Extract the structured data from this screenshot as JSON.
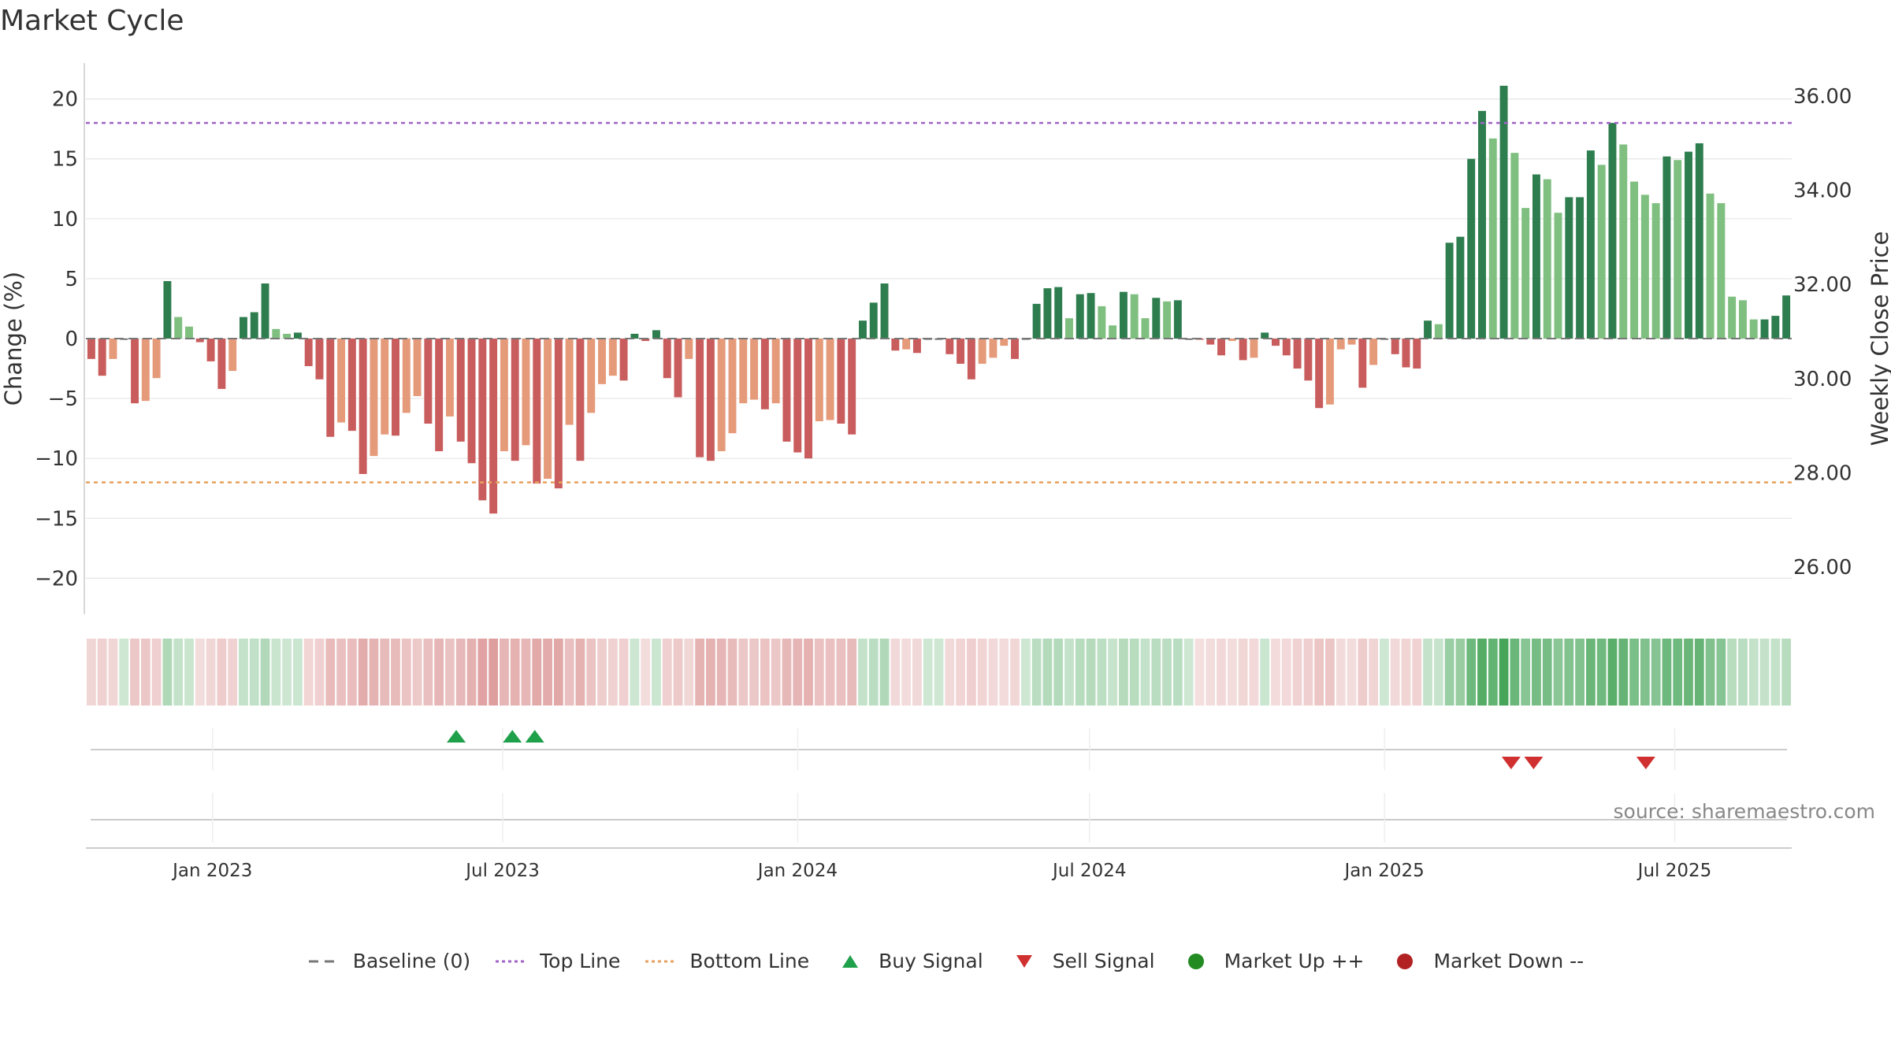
{
  "title": "Market Cycle",
  "source": "source: sharemaestro.com",
  "colors": {
    "strong_up": "#2e7d4f",
    "up": "#7fbf7f",
    "down": "#e59a7a",
    "strong_down": "#c95c5c",
    "top_line": "#a064c8",
    "bottom_line": "#e8a060",
    "baseline": "#777777",
    "buy": "#1fa04a",
    "sell": "#d03030",
    "market_up": "#228b22",
    "market_down": "#b22222"
  },
  "legend": [
    {
      "label": "Baseline (0)",
      "icon": "dash-line",
      "color": "#777777"
    },
    {
      "label": "Top Line",
      "icon": "dotted-line",
      "color": "#a064c8"
    },
    {
      "label": "Bottom Line",
      "icon": "dotted-line",
      "color": "#e8a060"
    },
    {
      "label": "Buy Signal",
      "icon": "triangle-up",
      "color": "#1fa04a"
    },
    {
      "label": "Sell Signal",
      "icon": "triangle-down",
      "color": "#d03030"
    },
    {
      "label": "Market Up ++",
      "icon": "circle",
      "color": "#228b22"
    },
    {
      "label": "Market Down --",
      "icon": "circle",
      "color": "#b22222"
    }
  ],
  "chart_data": {
    "type": "bar",
    "title": "Market Cycle",
    "ylabel": "Change (%)",
    "ylabel_right": "Weekly Close Price",
    "ylim": [
      -23,
      23
    ],
    "ylim_right": [
      25,
      36.7
    ],
    "yticks": [
      20,
      15,
      10,
      5,
      0,
      -5,
      -10,
      -15,
      -20
    ],
    "ytick_labels": [
      "20",
      "15",
      "10",
      "5",
      "0",
      "−5",
      "−10",
      "−15",
      "−20"
    ],
    "yticks_right": [
      36,
      34,
      32,
      30,
      28,
      26
    ],
    "ytick_right_labels": [
      "36.00",
      "34.00",
      "32.00",
      "30.00",
      "28.00",
      "26.00"
    ],
    "x_start": "2022-10-14",
    "x_end": "2025-09-12",
    "xticks": [
      {
        "date": "2023-01-01",
        "label": "Jan 2023"
      },
      {
        "date": "2023-07-01",
        "label": "Jul 2023"
      },
      {
        "date": "2024-01-01",
        "label": "Jan 2024"
      },
      {
        "date": "2024-07-01",
        "label": "Jul 2024"
      },
      {
        "date": "2025-01-01",
        "label": "Jan 2025"
      },
      {
        "date": "2025-07-01",
        "label": "Jul 2025"
      }
    ],
    "top_line": 18,
    "bottom_line": -12,
    "grid": true,
    "legend_position": "bottom",
    "series": [
      {
        "values": [
          -1.7,
          -3.1,
          -1.7,
          0,
          -5.4,
          -5.2,
          -3.3,
          4.8,
          1.8,
          1.0,
          -0.3,
          -1.9,
          -4.2,
          -2.7,
          1.8,
          2.2,
          4.6,
          0.8,
          0.4,
          0.5,
          -2.3,
          -3.4,
          -8.2,
          -7.0,
          -7.7,
          -11.3,
          -9.8,
          -8.0,
          -8.1,
          -6.2,
          -4.8,
          -7.1,
          -9.4,
          -6.5,
          -8.6,
          -10.4,
          -13.5,
          -14.6,
          -9.4,
          -10.2,
          -8.9,
          -12.1,
          -11.7,
          -12.5,
          -7.2,
          -10.2,
          -6.2,
          -3.8,
          -3.1,
          -3.5,
          0.4,
          -0.2,
          0.7,
          -3.3,
          -4.9,
          -1.7,
          -9.9,
          -10.2,
          -9.4,
          -7.9,
          -5.4,
          -5.1,
          -5.9,
          -5.4,
          -8.6,
          -9.5,
          -10.0,
          -6.9,
          -6.8,
          -7.1,
          -8.0,
          1.5,
          3.0,
          4.6,
          -1.0,
          -0.9,
          -1.2,
          0,
          0,
          -1.3,
          -2.1,
          -3.4,
          -2.1,
          -1.6,
          -0.6,
          -1.7,
          0,
          2.9,
          4.2,
          4.3,
          1.7,
          3.7,
          3.8,
          2.7,
          1.1,
          3.9,
          3.7,
          1.7,
          3.4,
          3.1,
          3.2,
          0,
          -0.1,
          -0.5,
          -1.4,
          -0.2,
          -1.8,
          -1.6,
          0.5,
          -0.6,
          -1.4,
          -2.5,
          -3.5,
          -5.8,
          -5.5,
          -0.9,
          -0.5,
          -4.1,
          -2.2,
          0,
          -1.3,
          -2.4,
          -2.5,
          1.5,
          1.2,
          8.0,
          8.5,
          15.0,
          19.0,
          16.7,
          21.1,
          15.5,
          10.9,
          13.7,
          13.3,
          10.5,
          11.8,
          11.8,
          15.7,
          14.5,
          18.0,
          16.2,
          13.1,
          12.0,
          11.3,
          15.2,
          14.9,
          15.6,
          16.3,
          12.1,
          11.3,
          3.5,
          3.2,
          1.6,
          1.6,
          1.9,
          3.6
        ]
      }
    ],
    "price_series": [],
    "signals": {
      "buy": [
        "2023-06-02",
        "2023-07-07",
        "2023-07-21"
      ],
      "sell": [
        "2025-03-21",
        "2025-04-04",
        "2025-06-13"
      ]
    }
  }
}
